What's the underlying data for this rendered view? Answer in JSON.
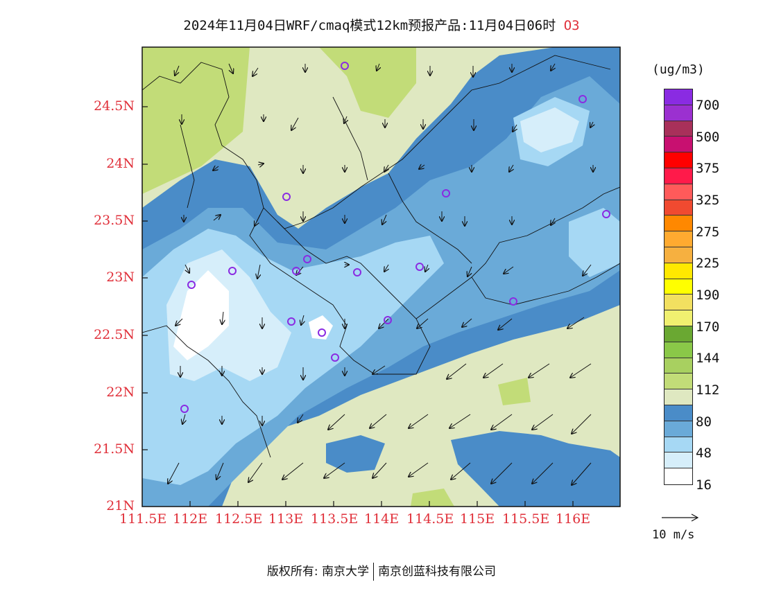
{
  "title": {
    "main": "2024年11月04日WRF/cmaq模式12km预报产品:11月04日06时",
    "species": "O3"
  },
  "map": {
    "lat_labels": [
      "24.5N",
      "24N",
      "23.5N",
      "23N",
      "22.5N",
      "22N",
      "21.5N",
      "21N"
    ],
    "lon_labels": [
      "111.5E",
      "112E",
      "112.5E",
      "113E",
      "113.5E",
      "114E",
      "114.5E",
      "115E",
      "115.5E",
      "116E"
    ],
    "background_color": "#dfe8c1",
    "wind_direction": "north-northeast to northeast",
    "station_marker_color": "#8a2be2"
  },
  "colorbar": {
    "units": "(ug/m3)",
    "colors": [
      "#8a2be2",
      "#9b30d0",
      "#a8305a",
      "#c81070",
      "#ff0000",
      "#ff1a4a",
      "#ff5a5a",
      "#f04a30",
      "#ff8800",
      "#ffaa30",
      "#f6b040",
      "#ffe800",
      "#ffff00",
      "#f2e060",
      "#f0f070",
      "#6aa832",
      "#8ac848",
      "#a8d060",
      "#c2dc78",
      "#dfe8c1",
      "#4a8cc8",
      "#6aaad8",
      "#a6d8f4",
      "#d6eefa",
      "#ffffff"
    ],
    "labels": [
      "700",
      "500",
      "375",
      "325",
      "275",
      "225",
      "190",
      "170",
      "144",
      "112",
      "80",
      "48",
      "16"
    ]
  },
  "reference_vector": {
    "label": "10 m/s"
  },
  "footer": {
    "left": "版权所有: 南京大学",
    "right": "南京创蓝科技有限公司"
  }
}
